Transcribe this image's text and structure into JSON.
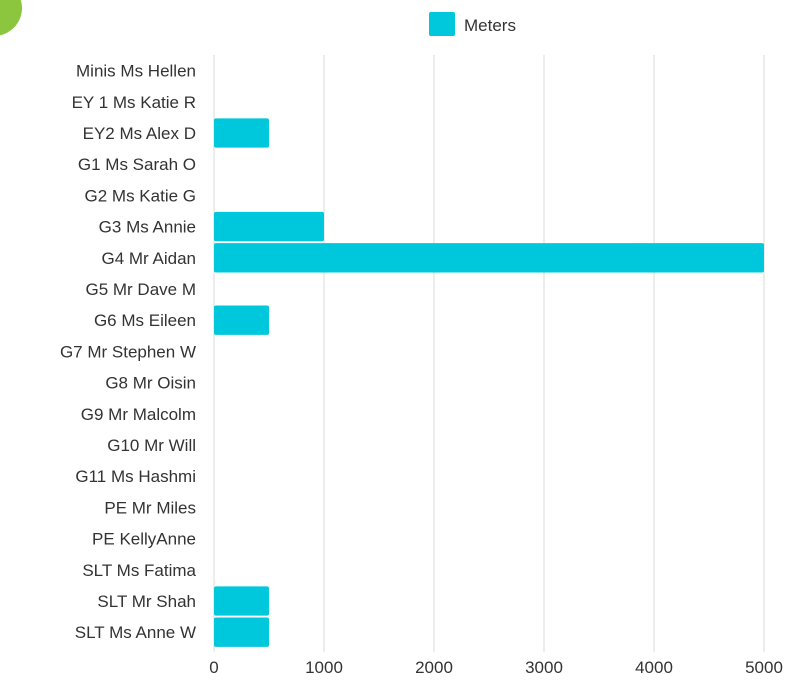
{
  "chart_data": {
    "type": "bar",
    "orientation": "horizontal",
    "categories": [
      "Minis Ms Hellen",
      "EY 1 Ms Katie R",
      "EY2 Ms Alex D",
      "G1 Ms Sarah O",
      "G2 Ms Katie G",
      "G3 Ms Annie",
      "G4 Mr Aidan",
      "G5 Mr Dave M",
      "G6 Ms Eileen",
      "G7 Mr Stephen W",
      "G8 Mr Oisin",
      "G9 Mr Malcolm",
      "G10 Mr Will",
      "G11 Ms Hashmi",
      "PE Mr Miles",
      "PE KellyAnne",
      "SLT Ms Fatima",
      "SLT Mr Shah",
      "SLT Ms Anne W"
    ],
    "series": [
      {
        "name": "Meters",
        "color": "#00c8dc",
        "values": [
          0,
          0,
          500,
          0,
          0,
          1000,
          5000,
          0,
          500,
          0,
          0,
          0,
          0,
          0,
          0,
          0,
          0,
          500,
          500
        ]
      }
    ],
    "xlim": [
      0,
      5000
    ],
    "xticks": [
      "0",
      "1000",
      "2000",
      "3000",
      "4000",
      "5000"
    ],
    "grid": "vertical",
    "legend_position": "top",
    "title": "",
    "xlabel": "",
    "ylabel": ""
  },
  "colors": {
    "bar": "#00c8dc",
    "corner_badge": "#8cc63f",
    "grid": "#d9d9d9"
  }
}
